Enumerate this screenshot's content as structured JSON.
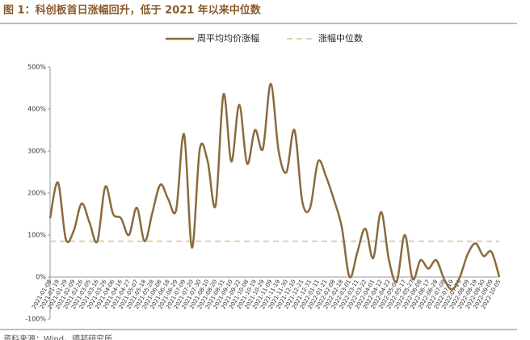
{
  "chart_data": {
    "type": "line",
    "title": "图 1：科创板首日涨幅回升，低于 2021 年以来中位数",
    "source": "资料来源：Wind，德邦研究所",
    "categories": [
      "2021-01-08",
      "2021-01-19",
      "2021-01-29",
      "2021-02-09",
      "2021-02-26",
      "2021-03-05",
      "2021-03-16",
      "2021-03-26",
      "2021-04-06",
      "2021-04-16",
      "2021-04-27",
      "2021-05-07",
      "2021-05-18",
      "2021-05-28",
      "2021-06-08",
      "2021-06-18",
      "2021-06-29",
      "2021-07-09",
      "2021-07-20",
      "2021-07-30",
      "2021-08-10",
      "2021-08-20",
      "2021-08-31",
      "2021-09-10",
      "2021-09-22",
      "2021-10-08",
      "2021-10-19",
      "2021-10-29",
      "2021-11-09",
      "2021-11-19",
      "2021-11-30",
      "2021-12-10",
      "2021-12-21",
      "2021-12-31",
      "2022-01-11",
      "2022-01-21",
      "2022-02-08",
      "2022-02-18",
      "2022-03-01",
      "2022-03-11",
      "2022-03-22",
      "2022-04-01",
      "2022-04-12",
      "2022-04-22",
      "2022-05-06",
      "2022-05-17",
      "2022-05-27",
      "2022-06-08",
      "2022-06-17",
      "2022-06-28",
      "2022-07-08",
      "2022-07-19",
      "2022-07-29",
      "2022-08-09",
      "2022-08-19",
      "2022-08-30",
      "2022-09-09",
      "2022-10-05"
    ],
    "series": [
      {
        "name": "周平均均价涨幅",
        "color": "#8b6a3e",
        "values": [
          140,
          225,
          90,
          110,
          175,
          130,
          85,
          215,
          150,
          140,
          100,
          165,
          85,
          155,
          220,
          185,
          160,
          340,
          70,
          305,
          275,
          170,
          435,
          275,
          410,
          270,
          350,
          305,
          460,
          300,
          250,
          350,
          180,
          165,
          275,
          240,
          185,
          120,
          0,
          60,
          115,
          45,
          155,
          40,
          -10,
          100,
          -5,
          40,
          20,
          40,
          -5,
          -30,
          0,
          55,
          80,
          50,
          60,
          0
        ]
      }
    ],
    "reference_line": {
      "name": "涨幅中位数",
      "value": 85,
      "color": "#e0cfb0"
    },
    "ylim": [
      -100,
      500
    ],
    "yticks": [
      {
        "value": -100,
        "label": "-100%"
      },
      {
        "value": 0,
        "label": "0%"
      },
      {
        "value": 100,
        "label": "100%"
      },
      {
        "value": 200,
        "label": "200%"
      },
      {
        "value": 300,
        "label": "300%"
      },
      {
        "value": 400,
        "label": "400%"
      },
      {
        "value": 500,
        "label": "500%"
      }
    ]
  }
}
